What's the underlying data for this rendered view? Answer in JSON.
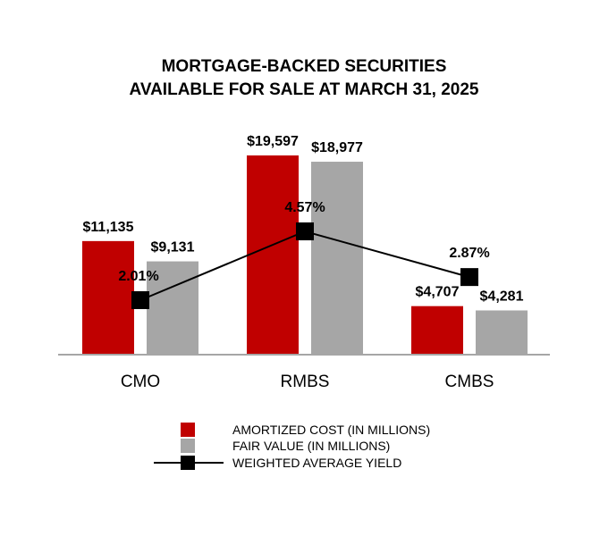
{
  "chart_data": {
    "type": "bar",
    "title_lines": [
      "MORTGAGE-BACKED SECURITIES",
      "AVAILABLE FOR SALE AT MARCH 31, 2025"
    ],
    "categories": [
      "CMO",
      "RMBS",
      "CMBS"
    ],
    "ylim": [
      0,
      20000
    ],
    "grid": false,
    "legend_position": "bottom-center",
    "series": [
      {
        "name": "AMORTIZED COST (IN MILLIONS)",
        "type": "bar",
        "color": "#c00000",
        "values": [
          11135,
          19597,
          4707
        ],
        "labels": [
          "$11,135",
          "$19,597",
          "$4,707"
        ]
      },
      {
        "name": "FAIR VALUE (IN MILLIONS)",
        "type": "bar",
        "color": "#a6a6a6",
        "values": [
          9131,
          18977,
          4281
        ],
        "labels": [
          "$9,131",
          "$18,977",
          "$4,281"
        ]
      },
      {
        "name": "WEIGHTED AVERAGE YIELD",
        "type": "line",
        "color": "#000000",
        "values": [
          2.01,
          4.57,
          2.87
        ],
        "labels": [
          "2.01%",
          "4.57%",
          "2.87%"
        ]
      }
    ]
  }
}
